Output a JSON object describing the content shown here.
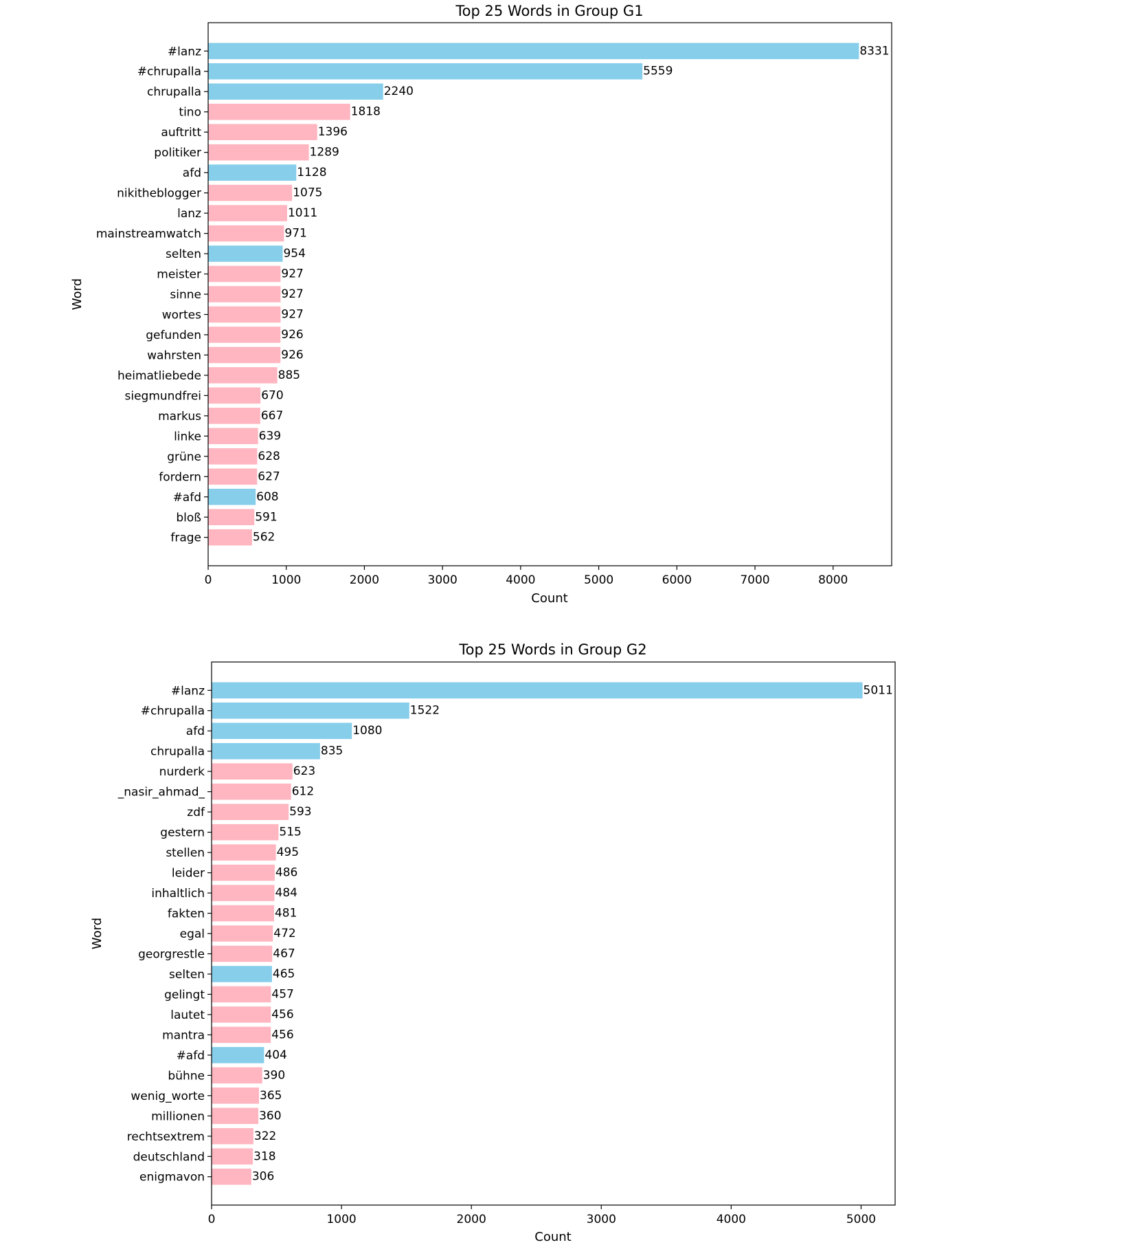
{
  "colors": {
    "highlight": "#87CEEB",
    "other": "#FFB6C1",
    "frame": "#000000"
  },
  "chart_data": [
    {
      "type": "bar",
      "orientation": "horizontal",
      "title": "Top 25 Words in Group G1",
      "xlabel": "Count",
      "ylabel": "Word",
      "xlim": [
        0,
        8750
      ],
      "xticks": [
        0,
        1000,
        2000,
        3000,
        4000,
        5000,
        6000,
        7000,
        8000
      ],
      "grid": false,
      "categories": [
        "#lanz",
        "#chrupalla",
        "chrupalla",
        "tino",
        "auftritt",
        "politiker",
        "afd",
        "nikitheblogger",
        "lanz",
        "mainstreamwatch",
        "selten",
        "meister",
        "sinne",
        "wortes",
        "gefunden",
        "wahrsten",
        "heimatliebede",
        "siegmundfrei",
        "markus",
        "linke",
        "grüne",
        "fordern",
        "#afd",
        "bloß",
        "frage"
      ],
      "values": [
        8331,
        5559,
        2240,
        1818,
        1396,
        1289,
        1128,
        1075,
        1011,
        971,
        954,
        927,
        927,
        927,
        926,
        926,
        885,
        670,
        667,
        639,
        628,
        627,
        608,
        591,
        562
      ],
      "bar_colors": [
        "#87CEEB",
        "#87CEEB",
        "#87CEEB",
        "#FFB6C1",
        "#FFB6C1",
        "#FFB6C1",
        "#87CEEB",
        "#FFB6C1",
        "#FFB6C1",
        "#FFB6C1",
        "#87CEEB",
        "#FFB6C1",
        "#FFB6C1",
        "#FFB6C1",
        "#FFB6C1",
        "#FFB6C1",
        "#FFB6C1",
        "#FFB6C1",
        "#FFB6C1",
        "#FFB6C1",
        "#FFB6C1",
        "#FFB6C1",
        "#87CEEB",
        "#FFB6C1",
        "#FFB6C1"
      ]
    },
    {
      "type": "bar",
      "orientation": "horizontal",
      "title": "Top 25 Words in Group G2",
      "xlabel": "Count",
      "ylabel": "Word",
      "xlim": [
        0,
        5262
      ],
      "xticks": [
        0,
        1000,
        2000,
        3000,
        4000,
        5000
      ],
      "grid": false,
      "categories": [
        "#lanz",
        "#chrupalla",
        "afd",
        "chrupalla",
        "nurderk",
        "_nasir_ahmad_",
        "zdf",
        "gestern",
        "stellen",
        "leider",
        "inhaltlich",
        "fakten",
        "egal",
        "georgrestle",
        "selten",
        "gelingt",
        "lautet",
        "mantra",
        "#afd",
        "bühne",
        "wenig_worte",
        "millionen",
        "rechtsextrem",
        "deutschland",
        "enigmavon"
      ],
      "values": [
        5011,
        1522,
        1080,
        835,
        623,
        612,
        593,
        515,
        495,
        486,
        484,
        481,
        472,
        467,
        465,
        457,
        456,
        456,
        404,
        390,
        365,
        360,
        322,
        318,
        306
      ],
      "bar_colors": [
        "#87CEEB",
        "#87CEEB",
        "#87CEEB",
        "#87CEEB",
        "#FFB6C1",
        "#FFB6C1",
        "#FFB6C1",
        "#FFB6C1",
        "#FFB6C1",
        "#FFB6C1",
        "#FFB6C1",
        "#FFB6C1",
        "#FFB6C1",
        "#FFB6C1",
        "#87CEEB",
        "#FFB6C1",
        "#FFB6C1",
        "#FFB6C1",
        "#87CEEB",
        "#FFB6C1",
        "#FFB6C1",
        "#FFB6C1",
        "#FFB6C1",
        "#FFB6C1",
        "#FFB6C1"
      ]
    }
  ]
}
